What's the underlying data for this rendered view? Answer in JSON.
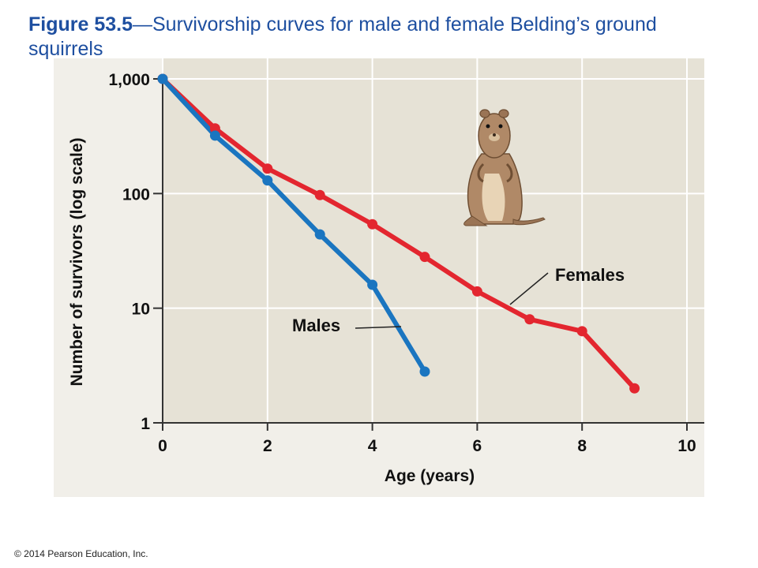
{
  "figure": {
    "label": "Figure 53.5",
    "title": "—Survivorship curves for male and female Belding’s ground squirrels"
  },
  "copyright": "© 2014 Pearson Education, Inc.",
  "chart_data": {
    "type": "line",
    "title": "Survivorship curves for male and female Belding’s ground squirrels",
    "xlabel": "Age (years)",
    "ylabel": "Number of survivors (log scale)",
    "xlim": [
      0,
      10
    ],
    "ylim": [
      1,
      1000
    ],
    "yscale": "log",
    "x_ticks": [
      0,
      2,
      4,
      6,
      8,
      10
    ],
    "x_tick_labels": [
      "0",
      "2",
      "4",
      "6",
      "8",
      "10"
    ],
    "y_ticks": [
      1,
      10,
      100,
      1000
    ],
    "y_tick_labels": [
      "1",
      "10",
      "100",
      "1,000"
    ],
    "grid": true,
    "series": [
      {
        "name": "Females",
        "color": "#e3262f",
        "x": [
          0,
          1,
          2,
          3,
          4,
          5,
          6,
          7,
          8,
          9
        ],
        "y": [
          1000,
          370,
          165,
          97,
          54,
          28,
          14,
          8,
          6.3,
          2
        ]
      },
      {
        "name": "Males",
        "color": "#1a75c0",
        "x": [
          0,
          1,
          2,
          3,
          4,
          5
        ],
        "y": [
          1000,
          320,
          130,
          44,
          16,
          2.8
        ]
      }
    ],
    "image_icon": "ground-squirrel-illustration"
  }
}
